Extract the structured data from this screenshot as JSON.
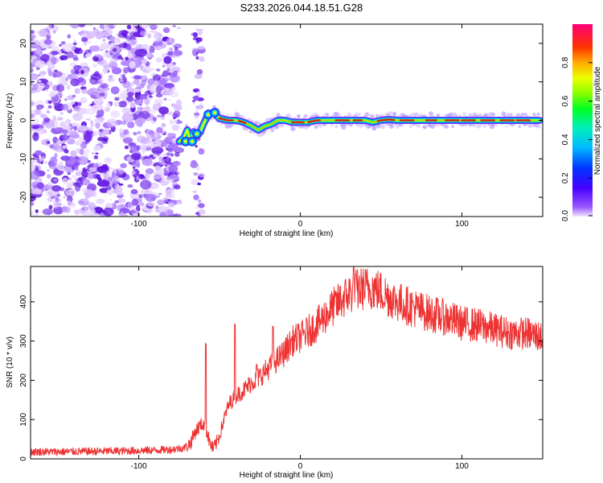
{
  "title": "S233.2026.044.18.51.G28",
  "chart_data": [
    {
      "type": "heatmap",
      "title": "S233.2026.044.18.51.G28",
      "xlabel": "Height of straight line (km)",
      "ylabel": "Frequency (Hz)",
      "xlim": [
        -167,
        150
      ],
      "ylim": [
        -25,
        25
      ],
      "xticks": [
        -100,
        0,
        100
      ],
      "yticks": [
        -20,
        -10,
        0,
        10,
        20
      ],
      "colorbar": {
        "label": "Normalized spectral amplitude",
        "range": [
          0,
          1
        ],
        "ticks": [
          "0.0",
          "0.2",
          "0.4",
          "0.6",
          "0.8"
        ]
      },
      "noise_region_x": [
        -167,
        -75
      ],
      "secondary_noise_x": [
        -66,
        -61
      ],
      "signal_trace": {
        "x": [
          -75,
          -72,
          -70,
          -68,
          -66,
          -64,
          -62,
          -60,
          -57,
          -54,
          -50,
          -45,
          -40,
          -35,
          -30,
          -26,
          -22,
          -18,
          -14,
          -10,
          -5,
          0,
          5,
          10,
          15,
          20,
          30,
          40,
          45,
          50,
          55,
          60,
          70,
          80,
          90,
          100,
          110,
          120,
          130,
          140,
          148
        ],
        "y": [
          -5.5,
          -4.5,
          -2.5,
          -5.5,
          -3,
          -4,
          -3,
          -1,
          1.5,
          2,
          0.5,
          0,
          0,
          -0.5,
          -1.5,
          -2.5,
          -1.5,
          -1,
          0,
          0,
          -0.5,
          -0.5,
          -0.5,
          0,
          0,
          0,
          0,
          0,
          -0.5,
          0,
          0.2,
          0,
          0,
          0,
          0,
          0,
          0,
          0,
          0,
          0,
          0
        ]
      }
    },
    {
      "type": "line",
      "xlabel": "Height of straight line (km)",
      "ylabel": "SNR (10 * v/v)",
      "xlim": [
        -167,
        150
      ],
      "ylim": [
        0,
        490
      ],
      "xticks": [
        -100,
        0,
        100
      ],
      "yticks": [
        0,
        100,
        200,
        300,
        400
      ],
      "series": [
        {
          "name": "SNR",
          "color": "#ee3333",
          "x": [
            -167,
            -150,
            -130,
            -110,
            -90,
            -80,
            -72,
            -68,
            -65,
            -62,
            -60,
            -58,
            -56,
            -54,
            -52,
            -50,
            -48,
            -46,
            -44,
            -42,
            -40,
            -35,
            -30,
            -25,
            -20,
            -15,
            -10,
            -5,
            0,
            10,
            20,
            30,
            35,
            40,
            45,
            50,
            60,
            70,
            80,
            90,
            100,
            110,
            120,
            130,
            140,
            150
          ],
          "values": [
            18,
            18,
            19,
            20,
            22,
            24,
            28,
            40,
            70,
            85,
            90,
            70,
            40,
            25,
            40,
            60,
            90,
            120,
            140,
            150,
            160,
            175,
            195,
            210,
            230,
            250,
            270,
            300,
            310,
            340,
            385,
            420,
            430,
            435,
            435,
            425,
            400,
            385,
            370,
            360,
            345,
            340,
            330,
            320,
            320,
            310
          ]
        }
      ],
      "spikes": [
        {
          "x": -58.5,
          "value": 295
        },
        {
          "x": -40.5,
          "value": 345
        },
        {
          "x": -27,
          "value": 245
        },
        {
          "x": -17,
          "value": 340
        },
        {
          "x": 33,
          "value": 490
        }
      ]
    }
  ],
  "colors": {
    "line": "#ee3333",
    "noise": "#7a3cd8",
    "frame": "#000000"
  }
}
